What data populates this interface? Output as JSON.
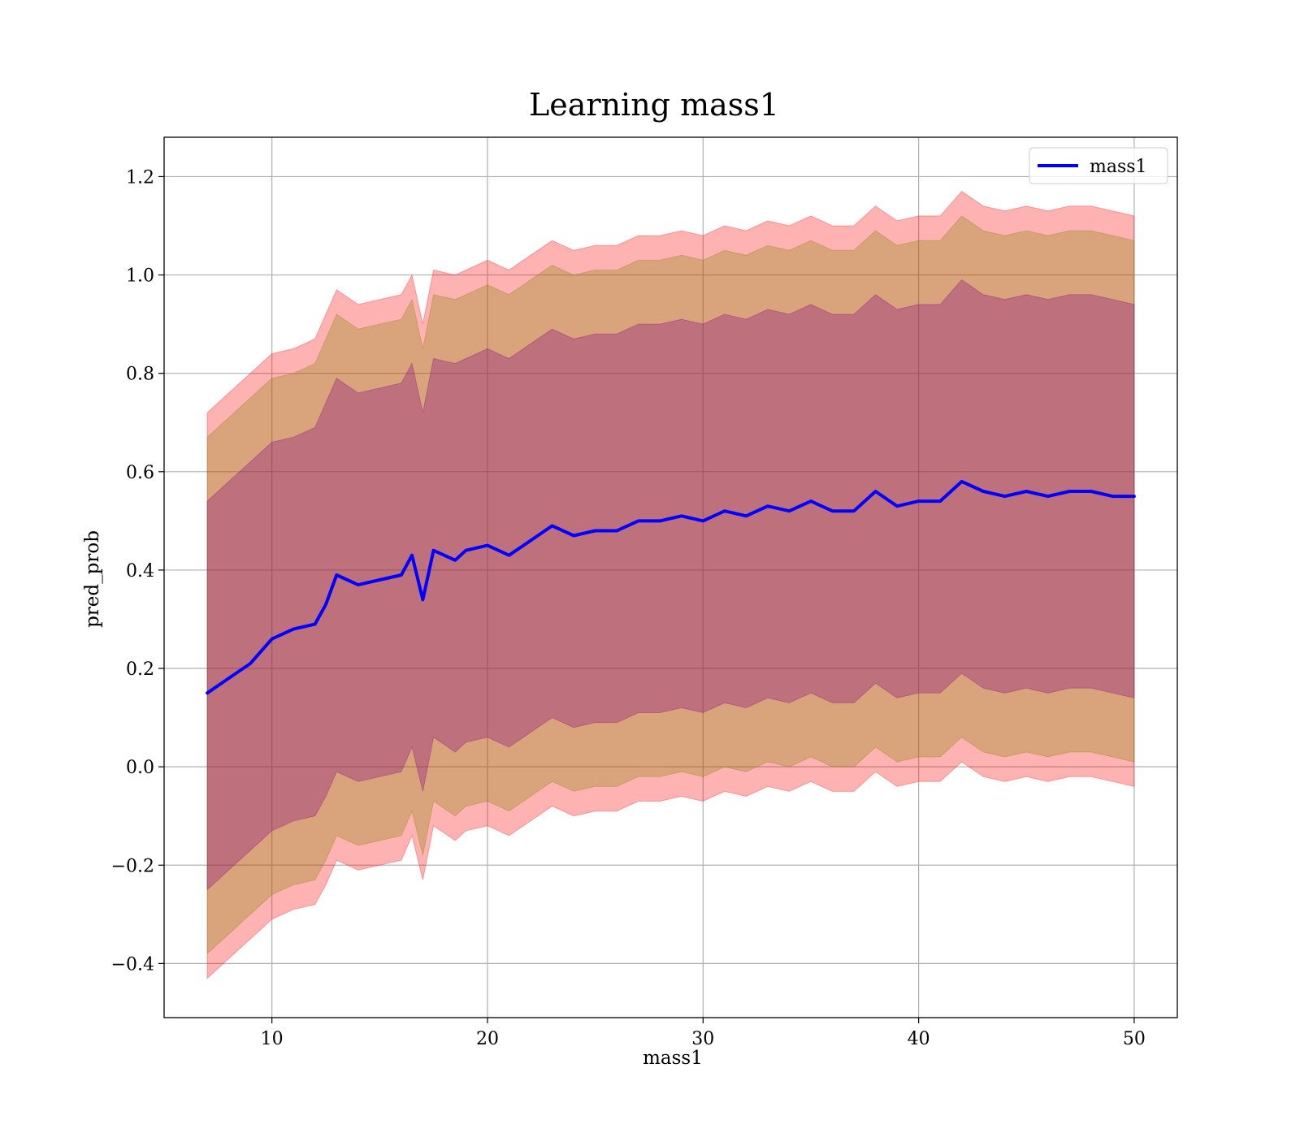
{
  "chart_data": {
    "type": "line",
    "title": "Learning mass1",
    "xlabel": "mass1",
    "ylabel": "pred_prob",
    "xlim": [
      5,
      52
    ],
    "ylim": [
      -0.51,
      1.28
    ],
    "xticks": [
      10,
      20,
      30,
      40,
      50
    ],
    "xtick_labels": [
      "10",
      "20",
      "30",
      "40",
      "50"
    ],
    "yticks": [
      -0.4,
      -0.2,
      0.0,
      0.2,
      0.4,
      0.6,
      0.8,
      1.0,
      1.2
    ],
    "ytick_labels": [
      "−0.4",
      "−0.2",
      "0.0",
      "0.2",
      "0.4",
      "0.6",
      "0.8",
      "1.0",
      "1.2"
    ],
    "grid": true,
    "legend_position": "top-right",
    "series": [
      {
        "name": "mass1",
        "color": "#0000ff",
        "x": [
          7,
          8,
          9,
          10,
          11,
          12,
          12.5,
          13,
          14,
          15,
          16,
          16.5,
          17,
          17.5,
          18.5,
          19,
          20,
          21,
          22,
          23,
          24,
          25,
          26,
          27,
          28,
          29,
          30,
          31,
          32,
          33,
          34,
          35,
          36,
          37,
          38,
          39,
          40,
          41,
          42,
          43,
          44,
          45,
          46,
          47,
          48,
          49,
          50
        ],
        "y": [
          0.15,
          0.18,
          0.21,
          0.26,
          0.28,
          0.29,
          0.33,
          0.39,
          0.37,
          0.38,
          0.39,
          0.43,
          0.34,
          0.44,
          0.42,
          0.44,
          0.45,
          0.43,
          0.46,
          0.49,
          0.47,
          0.48,
          0.48,
          0.5,
          0.5,
          0.51,
          0.5,
          0.52,
          0.51,
          0.53,
          0.52,
          0.54,
          0.52,
          0.52,
          0.56,
          0.53,
          0.54,
          0.54,
          0.58,
          0.56,
          0.55,
          0.56,
          0.55,
          0.56,
          0.56,
          0.55,
          0.55
        ]
      }
    ],
    "bands": [
      {
        "color": "#ff0000",
        "opacity": 0.3,
        "x": [
          7,
          8,
          9,
          10,
          11,
          12,
          12.5,
          13,
          14,
          15,
          16,
          16.5,
          17,
          17.5,
          18.5,
          19,
          20,
          21,
          22,
          23,
          24,
          25,
          26,
          27,
          28,
          29,
          30,
          31,
          32,
          33,
          34,
          35,
          36,
          37,
          38,
          39,
          40,
          41,
          42,
          43,
          44,
          45,
          46,
          47,
          48,
          49,
          50
        ],
        "upper": [
          0.72,
          0.76,
          0.8,
          0.84,
          0.85,
          0.87,
          0.92,
          0.97,
          0.94,
          0.95,
          0.96,
          1.0,
          0.9,
          1.01,
          1.0,
          1.01,
          1.03,
          1.01,
          1.04,
          1.07,
          1.05,
          1.06,
          1.06,
          1.08,
          1.08,
          1.09,
          1.08,
          1.1,
          1.09,
          1.11,
          1.1,
          1.12,
          1.1,
          1.1,
          1.14,
          1.11,
          1.12,
          1.12,
          1.17,
          1.14,
          1.13,
          1.14,
          1.13,
          1.14,
          1.14,
          1.13,
          1.12
        ],
        "lower": [
          -0.43,
          -0.39,
          -0.35,
          -0.31,
          -0.29,
          -0.28,
          -0.24,
          -0.19,
          -0.21,
          -0.2,
          -0.19,
          -0.14,
          -0.23,
          -0.12,
          -0.15,
          -0.13,
          -0.12,
          -0.14,
          -0.11,
          -0.08,
          -0.1,
          -0.09,
          -0.09,
          -0.07,
          -0.07,
          -0.06,
          -0.07,
          -0.05,
          -0.06,
          -0.04,
          -0.05,
          -0.03,
          -0.05,
          -0.05,
          -0.01,
          -0.04,
          -0.03,
          -0.03,
          0.01,
          -0.02,
          -0.03,
          -0.02,
          -0.03,
          -0.02,
          -0.02,
          -0.03,
          -0.04
        ]
      },
      {
        "color": "#808000",
        "opacity": 0.3,
        "x": [
          7,
          8,
          9,
          10,
          11,
          12,
          12.5,
          13,
          14,
          15,
          16,
          16.5,
          17,
          17.5,
          18.5,
          19,
          20,
          21,
          22,
          23,
          24,
          25,
          26,
          27,
          28,
          29,
          30,
          31,
          32,
          33,
          34,
          35,
          36,
          37,
          38,
          39,
          40,
          41,
          42,
          43,
          44,
          45,
          46,
          47,
          48,
          49,
          50
        ],
        "upper": [
          0.67,
          0.71,
          0.75,
          0.79,
          0.8,
          0.82,
          0.87,
          0.92,
          0.89,
          0.9,
          0.91,
          0.95,
          0.85,
          0.96,
          0.95,
          0.96,
          0.98,
          0.96,
          0.99,
          1.02,
          1.0,
          1.01,
          1.01,
          1.03,
          1.03,
          1.04,
          1.03,
          1.05,
          1.04,
          1.06,
          1.05,
          1.07,
          1.05,
          1.05,
          1.09,
          1.06,
          1.07,
          1.07,
          1.12,
          1.09,
          1.08,
          1.09,
          1.08,
          1.09,
          1.09,
          1.08,
          1.07
        ],
        "lower": [
          -0.38,
          -0.34,
          -0.3,
          -0.26,
          -0.24,
          -0.23,
          -0.19,
          -0.14,
          -0.16,
          -0.15,
          -0.14,
          -0.09,
          -0.18,
          -0.07,
          -0.1,
          -0.08,
          -0.07,
          -0.09,
          -0.06,
          -0.03,
          -0.05,
          -0.04,
          -0.04,
          -0.02,
          -0.02,
          -0.01,
          -0.02,
          0.0,
          -0.01,
          0.01,
          0.0,
          0.02,
          0.0,
          0.0,
          0.04,
          0.01,
          0.02,
          0.02,
          0.06,
          0.03,
          0.02,
          0.03,
          0.02,
          0.03,
          0.03,
          0.02,
          0.01
        ]
      },
      {
        "color": "#800080",
        "opacity": 0.3,
        "x": [
          7,
          8,
          9,
          10,
          11,
          12,
          12.5,
          13,
          14,
          15,
          16,
          16.5,
          17,
          17.5,
          18.5,
          19,
          20,
          21,
          22,
          23,
          24,
          25,
          26,
          27,
          28,
          29,
          30,
          31,
          32,
          33,
          34,
          35,
          36,
          37,
          38,
          39,
          40,
          41,
          42,
          43,
          44,
          45,
          46,
          47,
          48,
          49,
          50
        ],
        "upper": [
          0.54,
          0.58,
          0.62,
          0.66,
          0.67,
          0.69,
          0.74,
          0.79,
          0.76,
          0.77,
          0.78,
          0.82,
          0.72,
          0.83,
          0.82,
          0.83,
          0.85,
          0.83,
          0.86,
          0.89,
          0.87,
          0.88,
          0.88,
          0.9,
          0.9,
          0.91,
          0.9,
          0.92,
          0.91,
          0.93,
          0.92,
          0.94,
          0.92,
          0.92,
          0.96,
          0.93,
          0.94,
          0.94,
          0.99,
          0.96,
          0.95,
          0.96,
          0.95,
          0.96,
          0.96,
          0.95,
          0.94
        ],
        "lower": [
          -0.25,
          -0.21,
          -0.17,
          -0.13,
          -0.11,
          -0.1,
          -0.06,
          -0.01,
          -0.03,
          -0.02,
          -0.01,
          0.04,
          -0.05,
          0.06,
          0.03,
          0.05,
          0.06,
          0.04,
          0.07,
          0.1,
          0.08,
          0.09,
          0.09,
          0.11,
          0.11,
          0.12,
          0.11,
          0.13,
          0.12,
          0.14,
          0.13,
          0.15,
          0.13,
          0.13,
          0.17,
          0.14,
          0.15,
          0.15,
          0.19,
          0.16,
          0.15,
          0.16,
          0.15,
          0.16,
          0.16,
          0.15,
          0.14
        ]
      }
    ]
  }
}
